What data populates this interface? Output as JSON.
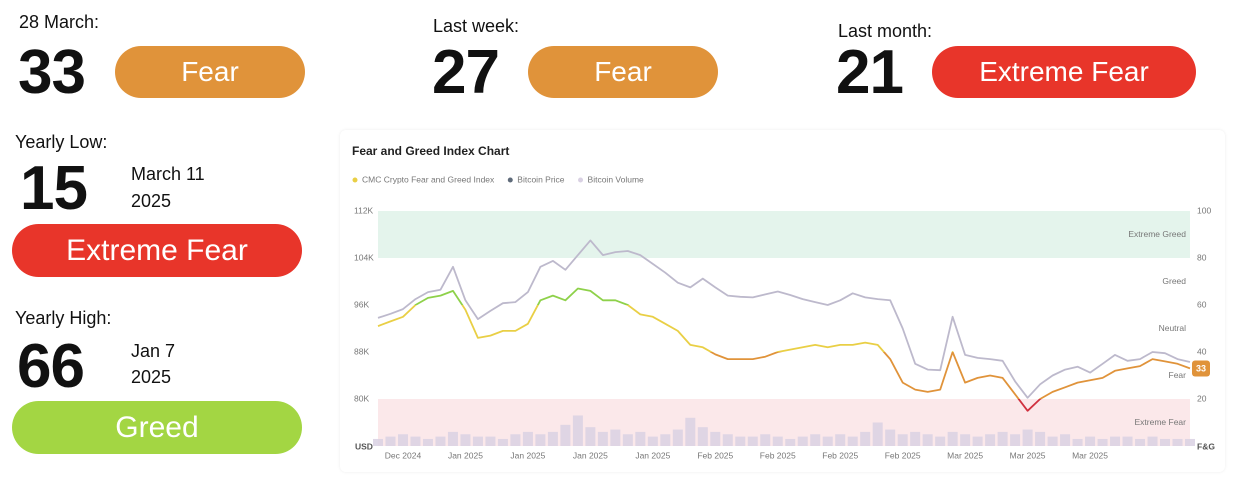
{
  "stats": [
    {
      "label": "28 March:",
      "value": 33,
      "status": "Fear",
      "color": "#e0933a"
    },
    {
      "label": "Last week:",
      "value": 27,
      "status": "Fear",
      "color": "#e0933a"
    },
    {
      "label": "Last month:",
      "value": 21,
      "status": "Extreme Fear",
      "color": "#e8352a"
    }
  ],
  "yearly": [
    {
      "label": "Yearly Low:",
      "value": 15,
      "date": "March 11",
      "year": "2025",
      "status": "Extreme Fear",
      "color": "#e8352a"
    },
    {
      "label": "Yearly High:",
      "value": 66,
      "date": "Jan 7",
      "year": "2025",
      "status": "Greed",
      "color": "#a3d643"
    }
  ],
  "chart_data": {
    "type": "line",
    "title": "Fear and Greed Index Chart",
    "ylabel": "USD",
    "y2label": "F&G",
    "categories": [
      null,
      null,
      "Dec 2024",
      null,
      null,
      null,
      null,
      "Jan 2025",
      null,
      null,
      null,
      null,
      "Jan 2025",
      null,
      null,
      null,
      null,
      "Jan 2025",
      null,
      null,
      null,
      null,
      "Jan 2025",
      null,
      null,
      null,
      null,
      "Feb 2025",
      null,
      null,
      null,
      null,
      "Feb 2025",
      null,
      null,
      null,
      null,
      "Feb 2025",
      null,
      null,
      null,
      null,
      "Feb 2025",
      null,
      null,
      null,
      null,
      "Mar 2025",
      null,
      null,
      null,
      null,
      "Mar 2025",
      null,
      null,
      null,
      null,
      "Mar 2025",
      null,
      null,
      null,
      null,
      null,
      null,
      null,
      null
    ],
    "series": [
      {
        "name": "CMC Crypto Fear and Greed Index",
        "color": "#e9cf45",
        "axis": "y2",
        "values": [
          51,
          53,
          55,
          60,
          63,
          64,
          66,
          58,
          46,
          47,
          49,
          49,
          52,
          62,
          64,
          62,
          67,
          66,
          62,
          62,
          60,
          56,
          55,
          52,
          49,
          43,
          42,
          39,
          37,
          37,
          37,
          38,
          40,
          41,
          42,
          43,
          42,
          43,
          43,
          44,
          43,
          37,
          27,
          24,
          23,
          24,
          40,
          27,
          29,
          30,
          29,
          22,
          15,
          20,
          23,
          25,
          27,
          28,
          29,
          32,
          33,
          34,
          37,
          36,
          35,
          33
        ]
      },
      {
        "name": "Bitcoin Price",
        "color": "#bdb9cc",
        "marker_color": "#5f6b7a",
        "values": [
          93800,
          94500,
          95300,
          97000,
          98200,
          98600,
          102500,
          96800,
          93600,
          95000,
          96300,
          96500,
          98200,
          102500,
          103500,
          102000,
          104500,
          107000,
          104500,
          105000,
          105200,
          104500,
          103000,
          101500,
          99800,
          99000,
          100500,
          99000,
          97600,
          97400,
          97300,
          97800,
          98300,
          97700,
          97000,
          96500,
          96000,
          96800,
          98000,
          97300,
          97000,
          96800,
          92000,
          86000,
          85000,
          84900,
          94000,
          87500,
          87000,
          86800,
          86500,
          83000,
          80200,
          82500,
          84000,
          85000,
          85500,
          84500,
          86000,
          87500,
          86500,
          86800,
          88000,
          87800,
          86800,
          86300
        ]
      },
      {
        "name": "Bitcoin Volume",
        "color": "#d9d1e3",
        "axis": "y2",
        "kind": "bar",
        "values": [
          3,
          4,
          5,
          4,
          3,
          4,
          6,
          5,
          4,
          4,
          3,
          5,
          6,
          5,
          6,
          9,
          13,
          8,
          6,
          7,
          5,
          6,
          4,
          5,
          7,
          12,
          8,
          6,
          5,
          4,
          4,
          5,
          4,
          3,
          4,
          5,
          4,
          5,
          4,
          6,
          10,
          7,
          5,
          6,
          5,
          4,
          6,
          5,
          4,
          5,
          6,
          5,
          7,
          6,
          4,
          5,
          3,
          4,
          3,
          4,
          4,
          3,
          4,
          3,
          3,
          3
        ]
      }
    ],
    "ylim": [
      72000,
      112000
    ],
    "yticks": [
      {
        "value": 112000,
        "label": "112K"
      },
      {
        "value": 104000,
        "label": "104K"
      },
      {
        "value": 96000,
        "label": "96K"
      },
      {
        "value": 88000,
        "label": "88K"
      },
      {
        "value": 80000,
        "label": "80K"
      }
    ],
    "y2lim": [
      0,
      100
    ],
    "y2ticks": [
      100,
      80,
      60,
      40,
      20
    ],
    "zones": [
      {
        "name": "Extreme Greed",
        "from": 80,
        "to": 100,
        "fill": "#e4f4ec",
        "line": "#8ed14a"
      },
      {
        "name": "Greed",
        "from": 60,
        "to": 80,
        "line": "#8ed14a"
      },
      {
        "name": "Neutral",
        "from": 40,
        "to": 60,
        "line": "#e9cf45"
      },
      {
        "name": "Fear",
        "from": 20,
        "to": 40,
        "line": "#e0933a"
      },
      {
        "name": "Extreme Fear",
        "from": 0,
        "to": 20,
        "fill": "#fbe8ea",
        "line": "#d0303f"
      }
    ],
    "grid": false
  }
}
